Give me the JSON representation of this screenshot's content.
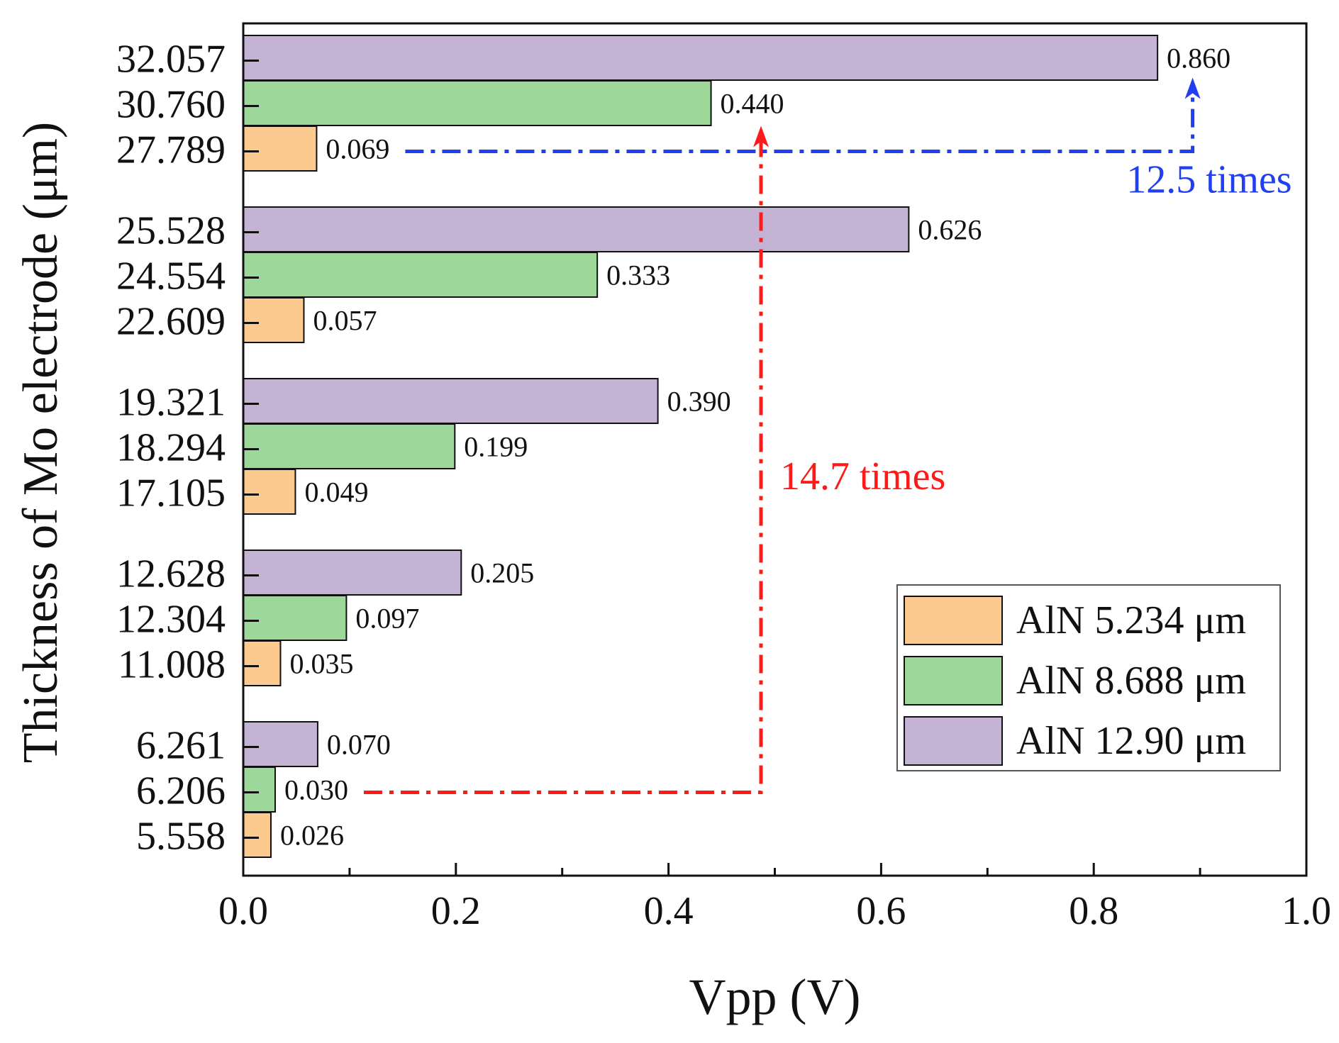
{
  "chart_data": {
    "type": "bar",
    "orientation": "horizontal",
    "title": "",
    "xlabel": "Vpp (V)",
    "ylabel": "Thickness of Mo electrode (μm)",
    "xlim": [
      0,
      1.0
    ],
    "xticks": [
      "0.0",
      "0.2",
      "0.4",
      "0.6",
      "0.8",
      "1.0"
    ],
    "grid": false,
    "legend_position": "lower-right",
    "series": [
      {
        "name": "AlN 5.234 μm",
        "color": "#fcc98e",
        "categories": [
          "5.558",
          "11.008",
          "17.105",
          "22.609",
          "27.789"
        ],
        "values": [
          0.026,
          0.035,
          0.049,
          0.057,
          0.069
        ],
        "labels": [
          "0.026",
          "0.035",
          "0.049",
          "0.057",
          "0.069"
        ]
      },
      {
        "name": "AlN 8.688 μm",
        "color": "#9ed79a",
        "categories": [
          "6.206",
          "12.304",
          "18.294",
          "24.554",
          "30.760"
        ],
        "values": [
          0.03,
          0.097,
          0.199,
          0.333,
          0.44
        ],
        "labels": [
          "0.030",
          "0.097",
          "0.199",
          "0.333",
          "0.440"
        ]
      },
      {
        "name": "AlN 12.90 μm",
        "color": "#c5b3d6",
        "categories": [
          "6.261",
          "12.628",
          "19.321",
          "25.528",
          "32.057"
        ],
        "values": [
          0.07,
          0.205,
          0.39,
          0.626,
          0.86
        ],
        "labels": [
          "0.070",
          "0.205",
          "0.390",
          "0.626",
          "0.860"
        ]
      }
    ],
    "annotations": [
      {
        "text": "12.5 times",
        "color": "#1f3ff0",
        "from_value": 0.069,
        "to_value": 0.86,
        "arrow_at_x": 0.893
      },
      {
        "text": "14.7 times",
        "color": "#ff1a1a",
        "from_value": 0.03,
        "to_value": 0.44,
        "arrow_at_x": 0.487
      }
    ]
  }
}
